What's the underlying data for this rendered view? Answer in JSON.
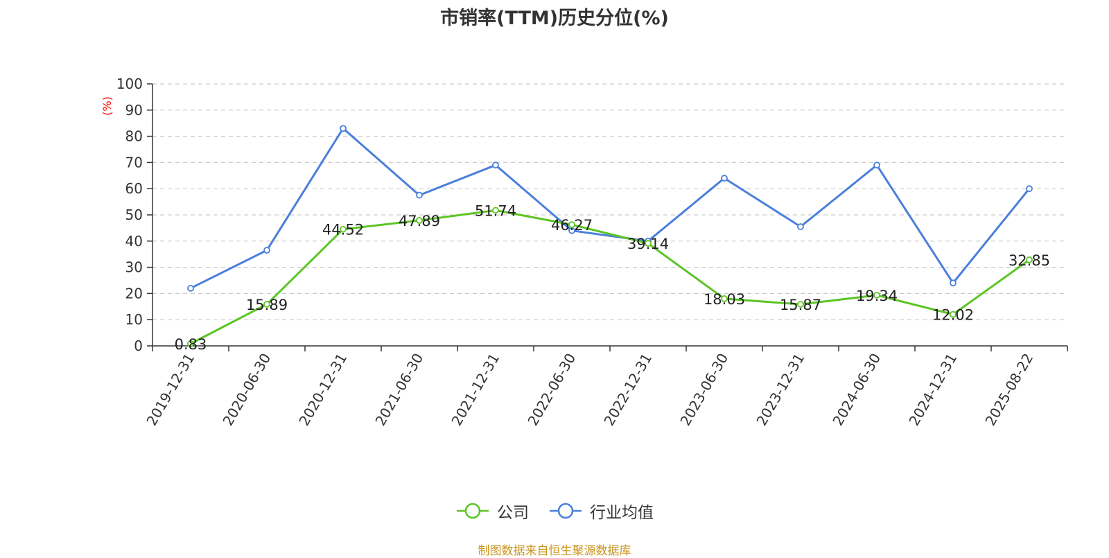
{
  "chart_data": {
    "type": "line",
    "title": "市销率(TTM)历史分位(%)",
    "ylabel": "(%)",
    "ylim": [
      0,
      100
    ],
    "yticks": [
      0,
      10,
      20,
      30,
      40,
      50,
      60,
      70,
      80,
      90,
      100
    ],
    "categories": [
      "2019-12-31",
      "2020-06-30",
      "2020-12-31",
      "2021-06-30",
      "2021-12-31",
      "2022-06-30",
      "2022-12-31",
      "2023-06-30",
      "2023-12-31",
      "2024-06-30",
      "2024-12-31",
      "2025-08-22"
    ],
    "series": [
      {
        "name": "公司",
        "color": "#5cc524",
        "show_labels": true,
        "values": [
          0.83,
          15.89,
          44.52,
          47.89,
          51.74,
          46.27,
          39.14,
          18.03,
          15.87,
          19.34,
          12.02,
          32.85
        ],
        "labels": [
          "0.83",
          "15.89",
          "44.52",
          "47.89",
          "51.74",
          "46.27",
          "39.14",
          "18.03",
          "15.87",
          "19.34",
          "12.02",
          "32.85"
        ]
      },
      {
        "name": "行业均值",
        "color": "#4a7fdb",
        "show_labels": false,
        "values": [
          22,
          36.5,
          83,
          57.5,
          69,
          44,
          40,
          64,
          45.5,
          69,
          24,
          60
        ]
      }
    ],
    "grid": true,
    "legend_position": "bottom-center"
  },
  "footer": {
    "source": "制图数据来自恒生聚源数据库"
  }
}
